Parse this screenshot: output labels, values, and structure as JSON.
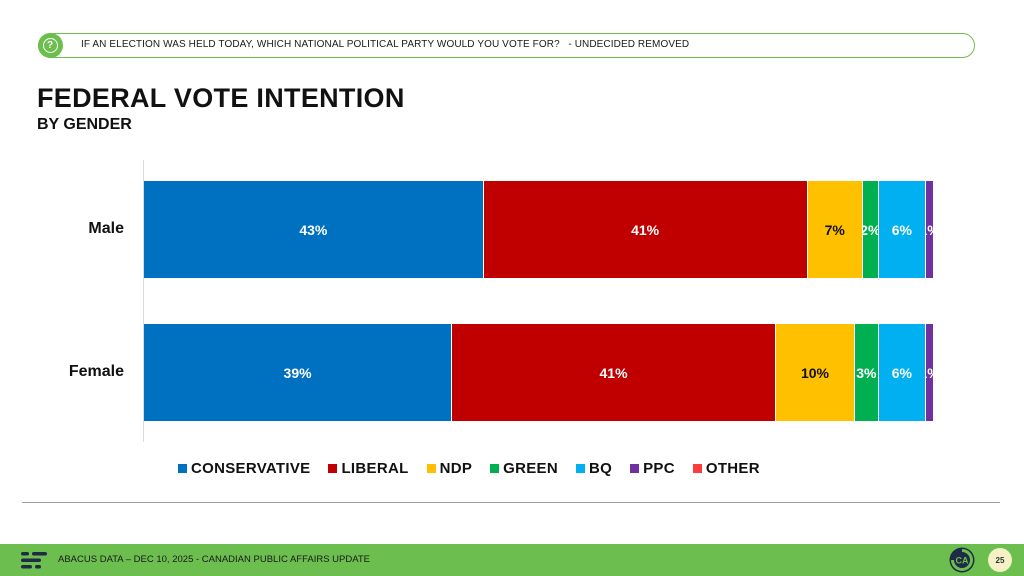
{
  "question": {
    "icon": "question-icon",
    "text": "IF AN ELECTION WAS HELD TODAY, WHICH NATIONAL POLITICAL PARTY WOULD YOU VOTE FOR?   - UNDECIDED REMOVED"
  },
  "colors": {
    "accent_green": "#6cbf4f",
    "CONSERVATIVE": "#0070c0",
    "LIBERAL": "#c00000",
    "NDP": "#ffc000",
    "GREEN": "#00b050",
    "BQ": "#00b0f0",
    "PPC": "#7030a0",
    "OTHER": "#ff3b3b"
  },
  "chart_data": {
    "type": "bar",
    "orientation": "horizontal",
    "stacked": true,
    "title": "FEDERAL VOTE INTENTION",
    "subtitle": "BY GENDER",
    "categories": [
      "Male",
      "Female"
    ],
    "xlim": [
      0,
      100
    ],
    "grid": false,
    "legend_position": "bottom",
    "series": [
      {
        "name": "CONSERVATIVE",
        "values": [
          43,
          39
        ]
      },
      {
        "name": "LIBERAL",
        "values": [
          41,
          41
        ]
      },
      {
        "name": "NDP",
        "values": [
          7,
          10
        ]
      },
      {
        "name": "GREEN",
        "values": [
          2,
          3
        ]
      },
      {
        "name": "BQ",
        "values": [
          6,
          6
        ]
      },
      {
        "name": "PPC",
        "values": [
          1,
          1
        ]
      },
      {
        "name": "OTHER",
        "values": [
          0,
          0
        ]
      }
    ]
  },
  "footer": {
    "text": "ABACUS DATA  – DEC 10, 2025 - CANADIAN PUBLIC AFFAIRS UPDATE",
    "logo_icon": "abacus-logo-icon",
    "badge_icon": "ca-badge-icon",
    "page_number": "25"
  }
}
